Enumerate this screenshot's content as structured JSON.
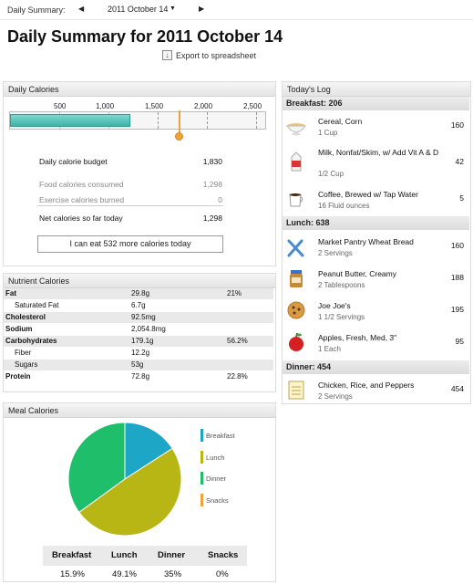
{
  "topbar": {
    "label": "Daily Summary:",
    "date": "2011 October 14",
    "prev_icon": "left-arrow-icon",
    "next_icon": "right-arrow-icon"
  },
  "title": "Daily Summary for 2011 October 14",
  "export_label": "Export to spreadsheet",
  "daily_calories": {
    "header": "Daily Calories",
    "ticks": [
      "500",
      "1,000",
      "1,500",
      "2,000",
      "2,500"
    ],
    "consumed": 1298,
    "budget": 1830,
    "scale_max": 2600,
    "budget_label": "Daily calorie budget",
    "budget_value": "1,830",
    "food_label": "Food calories consumed",
    "food_value": "1,298",
    "exercise_label": "Exercise calories burned",
    "exercise_value": "0",
    "net_label": "Net calories so far today",
    "net_value": "1,298",
    "eat_more": "I can eat 532 more calories today"
  },
  "nutrients": {
    "header": "Nutrient Calories",
    "rows": [
      {
        "name": "Fat",
        "value": "29.8g",
        "pct": "21%"
      },
      {
        "name": "Saturated Fat",
        "value": "6.7g",
        "pct": ""
      },
      {
        "name": "Cholesterol",
        "value": "92.5mg",
        "pct": ""
      },
      {
        "name": "Sodium",
        "value": "2,054.8mg",
        "pct": ""
      },
      {
        "name": "Carbohydrates",
        "value": "179.1g",
        "pct": "56.2%"
      },
      {
        "name": "Fiber",
        "value": "12.2g",
        "pct": ""
      },
      {
        "name": "Sugars",
        "value": "53g",
        "pct": ""
      },
      {
        "name": "Protein",
        "value": "72.8g",
        "pct": "22.8%"
      }
    ]
  },
  "meal_calories": {
    "header": "Meal Calories",
    "headers": [
      "Breakfast",
      "Lunch",
      "Dinner",
      "Snacks"
    ],
    "values": [
      "15.9%",
      "49.1%",
      "35%",
      "0%"
    ]
  },
  "chart_data": {
    "type": "pie",
    "categories": [
      "Breakfast",
      "Lunch",
      "Dinner",
      "Snacks"
    ],
    "values": [
      15.9,
      49.1,
      35,
      0
    ],
    "colors": [
      "#1ea6c6",
      "#b8b614",
      "#1fbe6a",
      "#f0a33a"
    ],
    "legend_position": "right"
  },
  "log": {
    "header": "Today's Log",
    "sections": [
      {
        "title": "Breakfast: 206",
        "items": [
          {
            "name": "Cereal, Corn",
            "serving": "1 Cup",
            "cal": "160",
            "icon": "cereal-bowl-icon"
          },
          {
            "name": "Milk, Nonfat/Skim, w/ Add Vit A & D",
            "serving": "1/2 Cup",
            "cal": "42",
            "icon": "milk-carton-icon"
          },
          {
            "name": "Coffee, Brewed w/ Tap Water",
            "serving": "16 Fluid ounces",
            "cal": "5",
            "icon": "coffee-cup-icon"
          }
        ]
      },
      {
        "title": "Lunch: 638",
        "items": [
          {
            "name": "Market Pantry Wheat Bread",
            "serving": "2 Servings",
            "cal": "160",
            "icon": "utensils-icon"
          },
          {
            "name": "Peanut Butter, Creamy",
            "serving": "2 Tablespoons",
            "cal": "188",
            "icon": "peanut-butter-jar-icon"
          },
          {
            "name": "Joe Joe's",
            "serving": "1 1/2 Servings",
            "cal": "195",
            "icon": "cookie-icon"
          },
          {
            "name": "Apples, Fresh, Med, 3\"",
            "serving": "1 Each",
            "cal": "95",
            "icon": "apple-icon"
          }
        ]
      },
      {
        "title": "Dinner: 454",
        "items": [
          {
            "name": "Chicken, Rice, and Peppers",
            "serving": "2 Servings",
            "cal": "454",
            "icon": "notepad-icon"
          }
        ]
      }
    ]
  }
}
